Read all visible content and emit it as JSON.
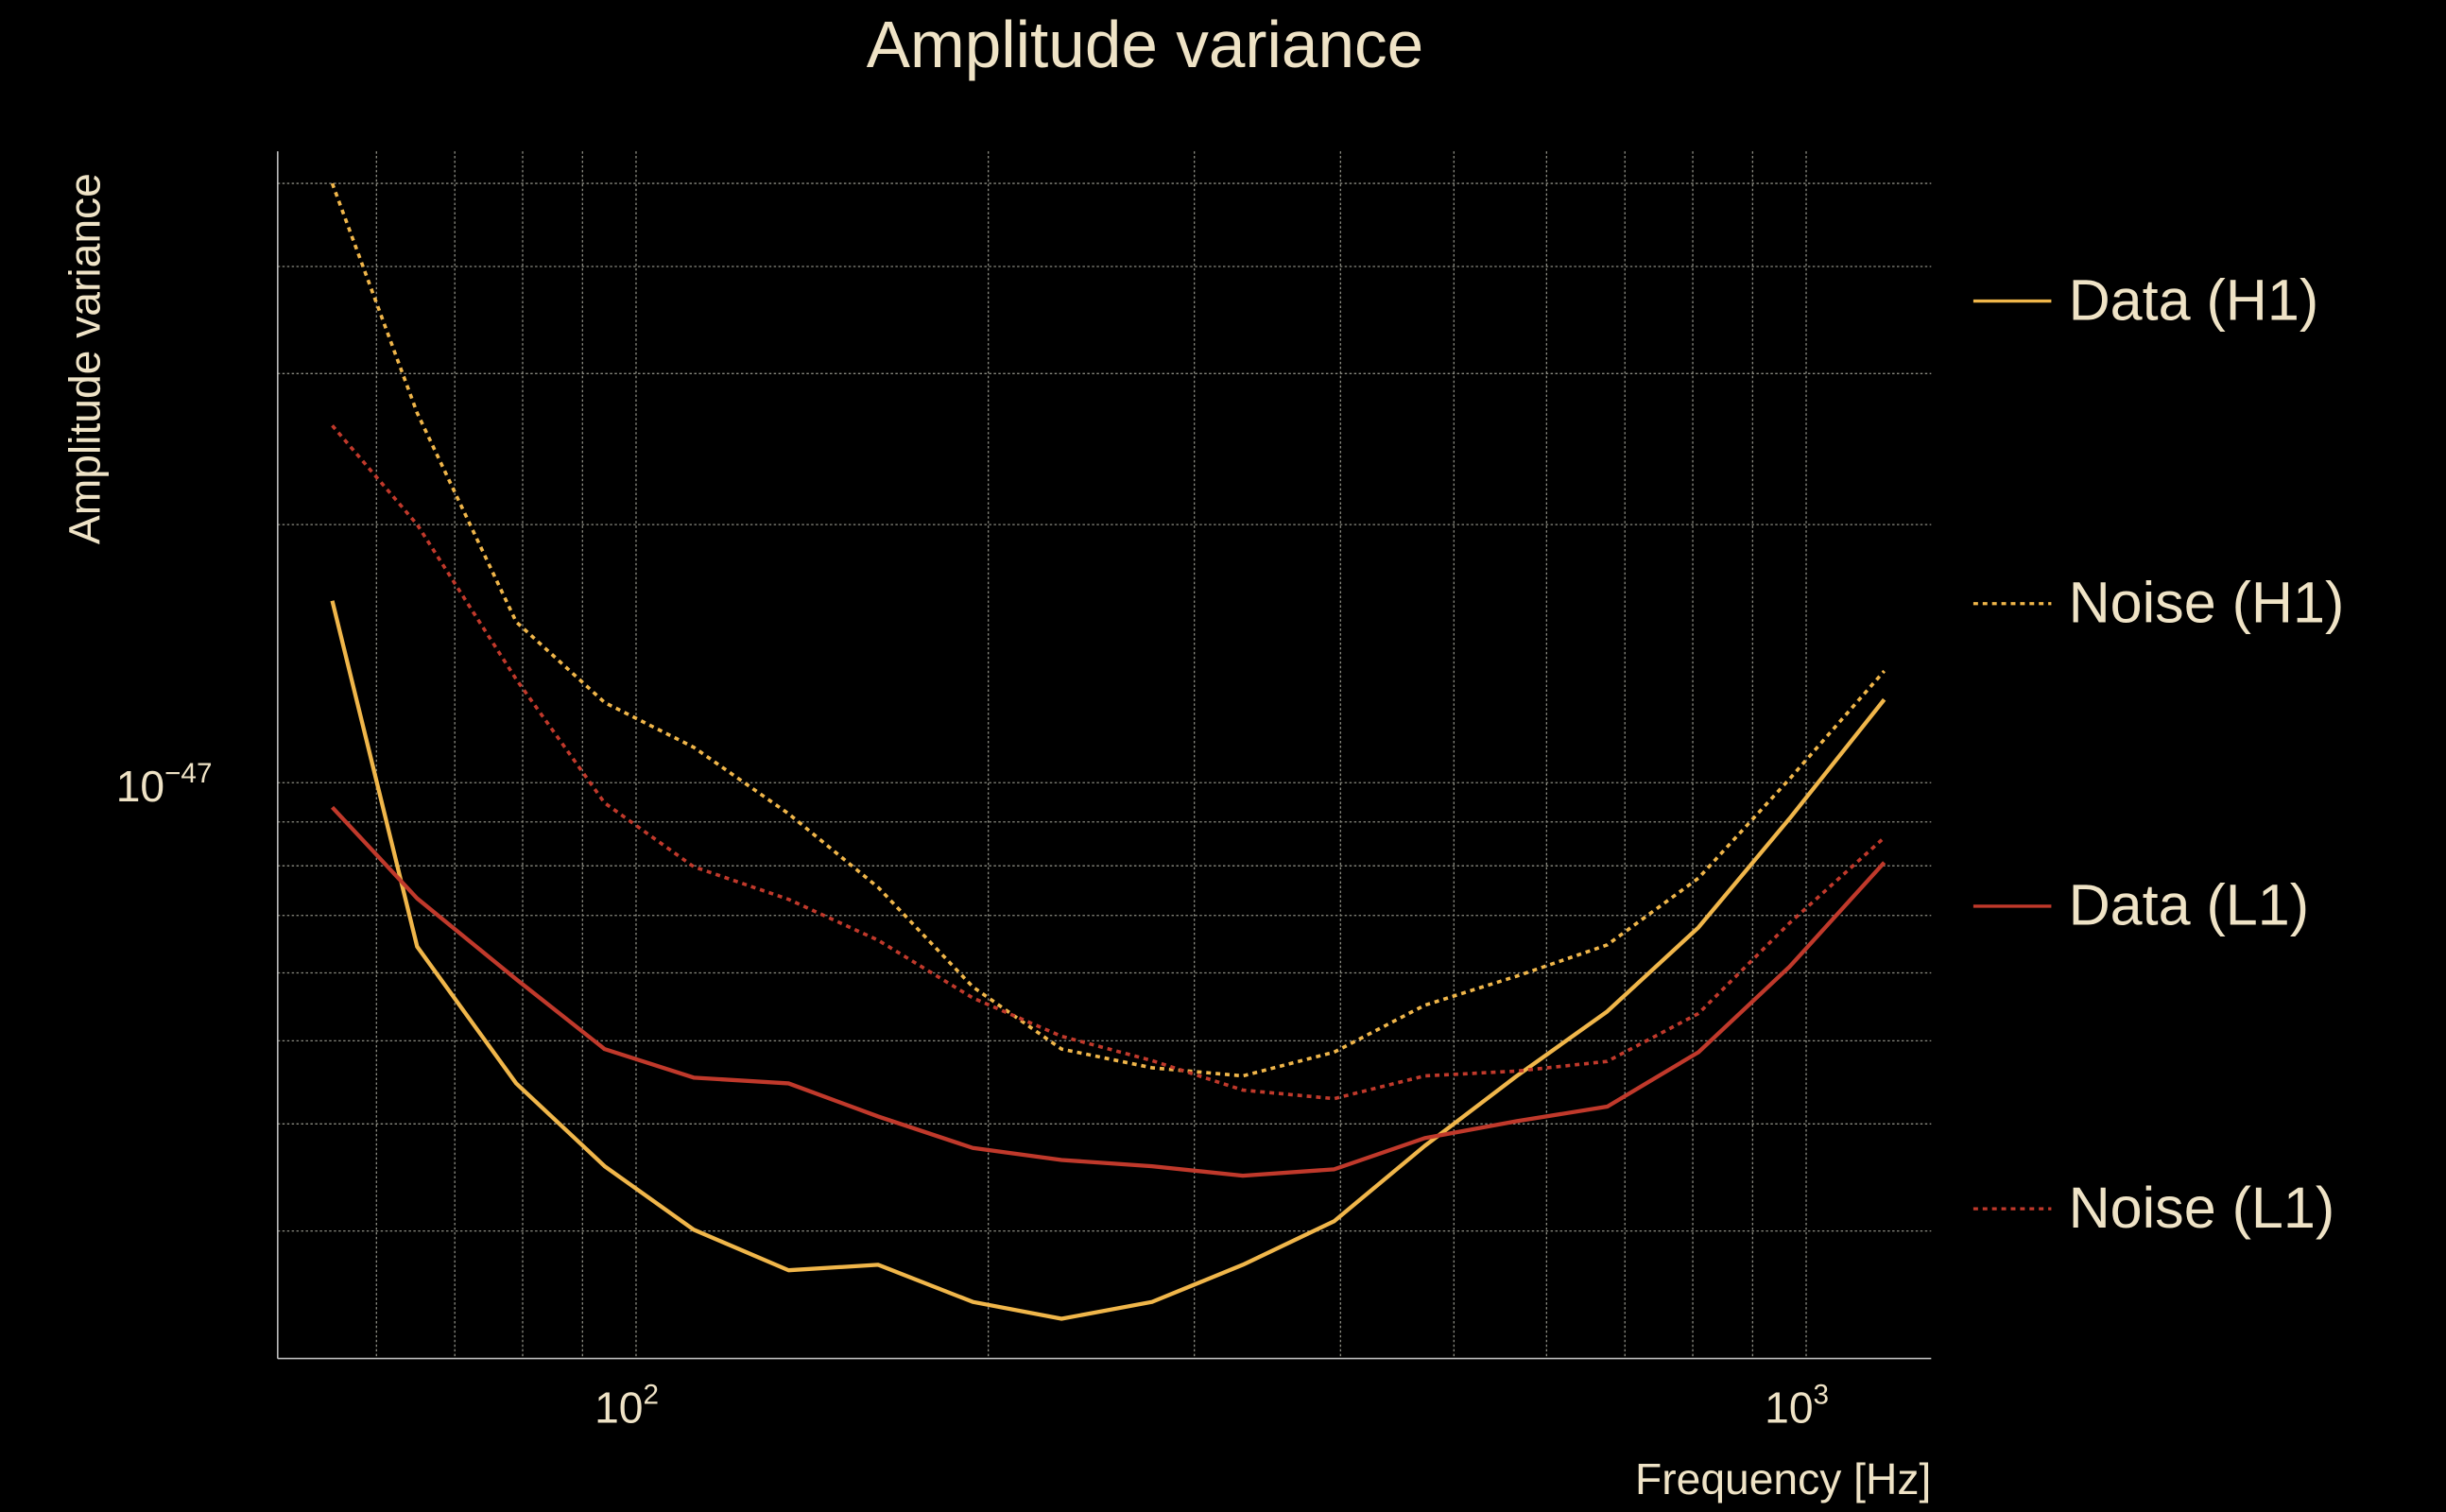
{
  "chart_data": {
    "type": "line",
    "title": "Amplitude variance",
    "xlabel": "Frequency [Hz]",
    "ylabel": "Amplitude variance",
    "xscale": "log",
    "yscale": "log",
    "xlim": [
      49.4,
      1279
    ],
    "ylim": [
      2.13e-48,
      5.45e-47
    ],
    "grid": true,
    "legend_placement": "right-outside",
    "x_ticks": [
      {
        "value": 100,
        "base": "10",
        "exp": "2"
      },
      {
        "value": 1000,
        "base": "10",
        "exp": "3"
      }
    ],
    "y_ticks": [
      {
        "value": 1e-47,
        "base": "10",
        "exp": "−47"
      }
    ],
    "x_minor_grid": [
      60,
      70,
      80,
      90,
      100,
      200,
      300,
      400,
      500,
      600,
      700,
      800,
      900,
      1000
    ],
    "y_minor_grid": [
      3e-48,
      4e-48,
      5e-48,
      6e-48,
      7e-48,
      8e-48,
      9e-48,
      1e-47,
      2e-47,
      3e-47,
      4e-47,
      5e-47
    ],
    "x": [
      55,
      65,
      79,
      94,
      112,
      135,
      161,
      194,
      231,
      276,
      330,
      395,
      472,
      566,
      676,
      809,
      968,
      1166
    ],
    "series": [
      {
        "name": "Data (H1)",
        "color": "#f0b64a",
        "style": "solid",
        "values": [
          1.63e-47,
          6.44e-48,
          4.46e-48,
          3.57e-48,
          3.01e-48,
          2.7e-48,
          2.74e-48,
          2.48e-48,
          2.37e-48,
          2.48e-48,
          2.74e-48,
          3.08e-48,
          3.77e-48,
          4.55e-48,
          5.41e-48,
          6.78e-48,
          9.08e-48,
          1.25e-47
        ]
      },
      {
        "name": "Noise (H1)",
        "color": "#f0b64a",
        "style": "dotted",
        "values": [
          5e-47,
          2.7e-47,
          1.54e-47,
          1.24e-47,
          1.1e-47,
          9.2e-48,
          7.55e-48,
          5.78e-48,
          4.89e-48,
          4.65e-48,
          4.55e-48,
          4.85e-48,
          5.5e-48,
          5.95e-48,
          6.47e-48,
          7.74e-48,
          1.01e-47,
          1.35e-47
        ]
      },
      {
        "name": "Data (L1)",
        "color": "#c0392b",
        "style": "solid",
        "values": [
          9.36e-48,
          7.33e-48,
          5.9e-48,
          4.89e-48,
          4.53e-48,
          4.46e-48,
          4.08e-48,
          3.75e-48,
          3.63e-48,
          3.57e-48,
          3.48e-48,
          3.54e-48,
          3.85e-48,
          4.03e-48,
          4.19e-48,
          4.85e-48,
          6.1e-48,
          8.07e-48
        ]
      },
      {
        "name": "Noise (L1)",
        "color": "#c0392b",
        "style": "dotted",
        "values": [
          2.61e-47,
          2e-47,
          1.32e-47,
          9.47e-48,
          7.98e-48,
          7.31e-48,
          6.55e-48,
          5.61e-48,
          5.06e-48,
          4.74e-48,
          4.38e-48,
          4.28e-48,
          4.55e-48,
          4.61e-48,
          4.73e-48,
          5.38e-48,
          6.86e-48,
          8.63e-48
        ]
      }
    ]
  }
}
